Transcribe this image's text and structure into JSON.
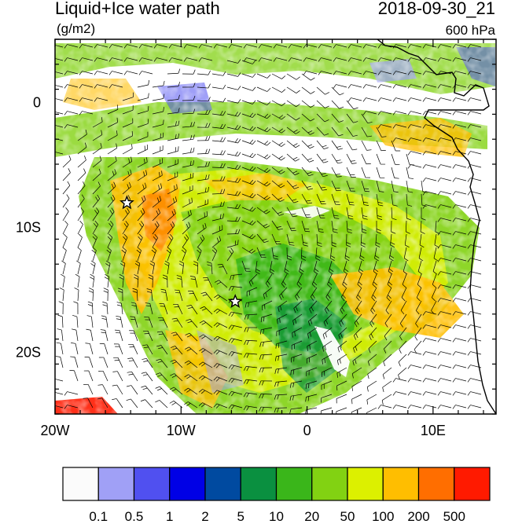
{
  "header": {
    "title": "Liquid+Ice water path",
    "units": "(g/m2)",
    "datetime": "2018-09-30_21",
    "level": "600 hPa"
  },
  "axes": {
    "x_ticks": [
      {
        "lon": -20,
        "label": "20W"
      },
      {
        "lon": -10,
        "label": "10W"
      },
      {
        "lon": 0,
        "label": "0"
      },
      {
        "lon": 10,
        "label": "10E"
      }
    ],
    "y_ticks": [
      {
        "lat": 0,
        "label": "0"
      },
      {
        "lat": -10,
        "label": "10S"
      },
      {
        "lat": -20,
        "label": "20S"
      }
    ],
    "lon_range": [
      -20,
      15
    ],
    "lat_range": [
      -25,
      5
    ]
  },
  "colorbar": {
    "colors": [
      "#fbfbfb",
      "#a0a0f6",
      "#5050f0",
      "#0000e6",
      "#004aa0",
      "#0a9040",
      "#3ab61a",
      "#82d212",
      "#dcf000",
      "#ffbe00",
      "#ff6e00",
      "#ff1a00"
    ],
    "labels": [
      "0.1",
      "0.5",
      "1",
      "2",
      "5",
      "10",
      "20",
      "50",
      "100",
      "200",
      "500"
    ]
  },
  "markers": [
    {
      "name": "star-marker",
      "lon": -14.3,
      "lat": -8.1
    },
    {
      "name": "star-marker",
      "lon": -5.7,
      "lat": -16.0
    }
  ]
}
